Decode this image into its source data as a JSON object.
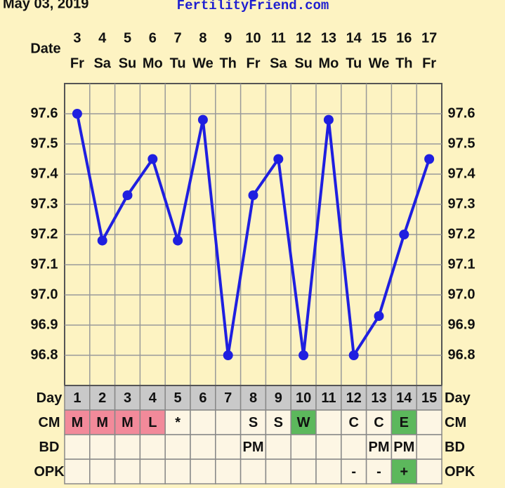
{
  "header": {
    "date": "May 03, 2019",
    "site": "FertilityFriend.com"
  },
  "chart_data": {
    "type": "line",
    "x_label": "Date",
    "categories": [
      "3",
      "4",
      "5",
      "6",
      "7",
      "8",
      "9",
      "10",
      "11",
      "12",
      "13",
      "14",
      "15",
      "16",
      "17"
    ],
    "weekdays": [
      "Fr",
      "Sa",
      "Su",
      "Mo",
      "Tu",
      "We",
      "Th",
      "Fr",
      "Sa",
      "Su",
      "Mo",
      "Tu",
      "We",
      "Th",
      "Fr"
    ],
    "series": [
      {
        "color": "#1f1fe0",
        "values": [
          97.6,
          97.18,
          97.33,
          97.45,
          97.18,
          97.58,
          96.8,
          97.33,
          97.45,
          96.8,
          97.58,
          96.8,
          96.93,
          97.2,
          97.45
        ]
      }
    ],
    "ylim": [
      96.7,
      97.7
    ],
    "yticks": [
      96.8,
      96.9,
      {
        "value": 97,
        "label": "97.0"
      },
      97.1,
      97.2,
      97.3,
      97.4,
      97.5,
      97.6
    ],
    "grid": true
  },
  "table": {
    "rows": [
      {
        "label": "Day",
        "cells": [
          "1",
          "2",
          "3",
          "4",
          "5",
          "6",
          "7",
          "8",
          "9",
          "10",
          "11",
          "12",
          "13",
          "14",
          "15"
        ]
      },
      {
        "label": "CM",
        "cells": [
          "M",
          "M",
          "M",
          "L",
          "*",
          null,
          null,
          "S",
          "S",
          "W",
          null,
          "C",
          "C",
          "E",
          null
        ],
        "colors": [
          "#f28a9a",
          "#f28a9a",
          "#f28a9a",
          "#f28a9a",
          null,
          null,
          null,
          null,
          null,
          "#5cb85c",
          null,
          null,
          null,
          "#5cb85c",
          null
        ]
      },
      {
        "label": "BD",
        "cells": [
          null,
          null,
          null,
          null,
          null,
          null,
          null,
          "PM",
          null,
          null,
          null,
          null,
          "PM",
          "PM",
          null
        ]
      },
      {
        "label": "OPK",
        "cells": [
          null,
          null,
          null,
          null,
          null,
          null,
          null,
          null,
          null,
          null,
          null,
          "-",
          "-",
          "+",
          null
        ],
        "colors": [
          null,
          null,
          null,
          null,
          null,
          null,
          null,
          null,
          null,
          null,
          null,
          null,
          null,
          "#5cb85c",
          null
        ]
      }
    ]
  }
}
